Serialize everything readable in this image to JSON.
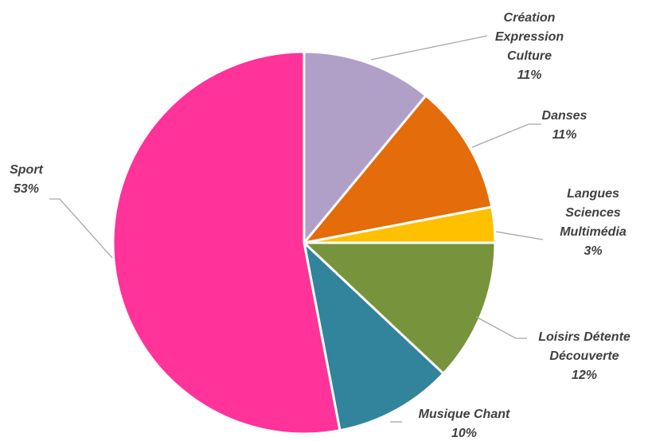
{
  "chart_data": {
    "type": "pie",
    "title": "",
    "slices": [
      {
        "label": [
          "Création",
          "Expression",
          "Culture"
        ],
        "percent_label": "11%",
        "value": 11,
        "color": "#b0a0c8"
      },
      {
        "label": [
          "Danses"
        ],
        "percent_label": "11%",
        "value": 11,
        "color": "#e46c0a"
      },
      {
        "label": [
          "Langues",
          "Sciences",
          "Multimédia"
        ],
        "percent_label": "3%",
        "value": 3,
        "color": "#ffc000"
      },
      {
        "label": [
          "Loisirs Détente",
          "Découverte"
        ],
        "percent_label": "12%",
        "value": 12,
        "color": "#77933c"
      },
      {
        "label": [
          "Musique Chant"
        ],
        "percent_label": "10%",
        "value": 10,
        "color": "#31849b"
      },
      {
        "label": [
          "Sport"
        ],
        "percent_label": "53%",
        "value": 53,
        "color": "#ff3399"
      }
    ],
    "legend": "none",
    "start_angle": "12 o'clock, clockwise"
  }
}
